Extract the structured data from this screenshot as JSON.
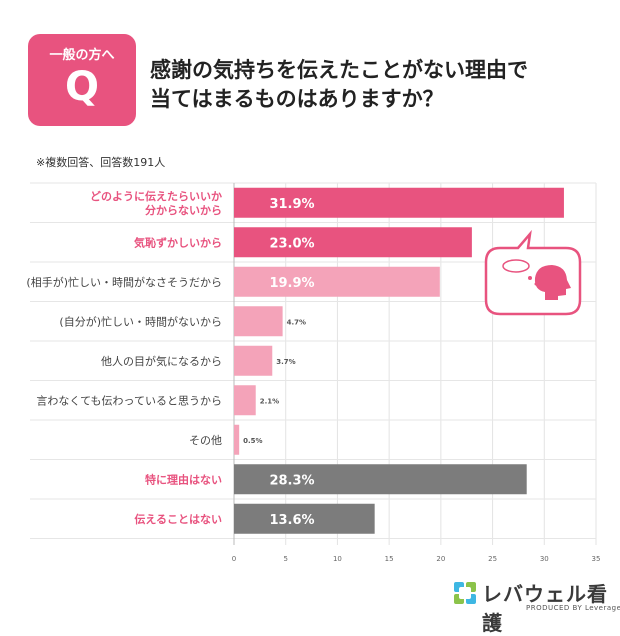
{
  "badge": {
    "label": "一般の方へ",
    "letter": "Q"
  },
  "title_line1": "感謝の気持ちを伝えたことがない理由で",
  "title_line2": "当てはまるものはありますか？",
  "note": "※複数回答、回答数191人",
  "chart_data": {
    "type": "bar",
    "orientation": "horizontal",
    "categories": [
      [
        "どのように伝えたらいいか",
        "分からないから"
      ],
      [
        "気恥ずかしいから"
      ],
      [
        "(相手が)忙しい・時間がなさそうだから"
      ],
      [
        "(自分が)忙しい・時間がないから"
      ],
      [
        "他人の目が気になるから"
      ],
      [
        "言わなくても伝わっていると思うから"
      ],
      [
        "その他"
      ],
      [
        "特に理由はない"
      ],
      [
        "伝えることはない"
      ]
    ],
    "values": [
      31.9,
      23.0,
      19.9,
      4.7,
      3.7,
      2.1,
      0.5,
      28.3,
      13.6
    ],
    "value_labels": [
      "31.9%",
      "23.0%",
      "19.9%",
      "4.7%",
      "3.7%",
      "2.1%",
      "0.5%",
      "28.3%",
      "13.6%"
    ],
    "label_colors": [
      "#e8537f",
      "#e8537f",
      "#444444",
      "#444444",
      "#444444",
      "#444444",
      "#444444",
      "#e8537f",
      "#e8537f"
    ],
    "bar_colors": [
      "#e8537f",
      "#e8537f",
      "#f4a3b9",
      "#f4a3b9",
      "#f4a3b9",
      "#f4a3b9",
      "#f4a3b9",
      "#7c7c7c",
      "#7c7c7c"
    ],
    "xticks": [
      "0",
      "5",
      "10",
      "15",
      "20",
      "25",
      "30",
      "35"
    ],
    "xlim": [
      0,
      35
    ],
    "grid": true,
    "title": "",
    "xlabel": "",
    "ylabel": ""
  },
  "logo": {
    "name": "レバウェル看護",
    "sub": "PRODUCED BY Leverages",
    "icon": "leverages-logo-icon"
  },
  "illustration": {
    "icon": "speech-bubble-thinking-head-icon"
  },
  "colors": {
    "accent": "#e8537f",
    "light": "#f4a3b9",
    "gray": "#7c7c7c"
  }
}
